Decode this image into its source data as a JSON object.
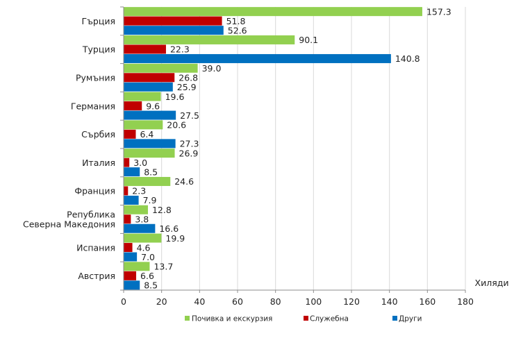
{
  "chart_data": {
    "type": "bar",
    "orientation": "horizontal",
    "title": "",
    "xlabel": "Хиляди",
    "ylabel": "",
    "xlim": [
      0,
      180
    ],
    "x_ticks": [
      "0",
      "20",
      "40",
      "60",
      "80",
      "100",
      "120",
      "140",
      "160",
      "180"
    ],
    "grid": true,
    "legend_position": "bottom",
    "categories": [
      [
        "Гърция"
      ],
      [
        "Турция"
      ],
      [
        "Румъния"
      ],
      [
        "Германия"
      ],
      [
        "Сърбия"
      ],
      [
        "Италия"
      ],
      [
        "Франция"
      ],
      [
        "Република",
        "Северна Македония"
      ],
      [
        "Испания"
      ],
      [
        "Австрия"
      ]
    ],
    "series": [
      {
        "name": "Почивка и екскурзия",
        "color": "#92d050",
        "values": [
          157.3,
          90.1,
          39.0,
          19.6,
          20.6,
          26.9,
          24.6,
          12.8,
          19.9,
          13.7
        ],
        "labels": [
          "157.3",
          "90.1",
          "39.0",
          "19.6",
          "20.6",
          "26.9",
          "24.6",
          "12.8",
          "19.9",
          "13.7"
        ]
      },
      {
        "name": "Служебна",
        "color": "#c00000",
        "values": [
          51.8,
          22.3,
          26.8,
          9.6,
          6.4,
          3.0,
          2.3,
          3.8,
          4.6,
          6.6
        ],
        "labels": [
          "51.8",
          "22.3",
          "26.8",
          "9.6",
          "6.4",
          "3.0",
          "2.3",
          "3.8",
          "4.6",
          "6.6"
        ]
      },
      {
        "name": "Други",
        "color": "#0070c0",
        "values": [
          52.6,
          140.8,
          25.9,
          27.5,
          27.3,
          8.5,
          7.9,
          16.6,
          7.0,
          8.5
        ],
        "labels": [
          "52.6",
          "140.8",
          "25.9",
          "27.5",
          "27.3",
          "8.5",
          "7.9",
          "16.6",
          "7.0",
          "8.5"
        ]
      }
    ]
  }
}
